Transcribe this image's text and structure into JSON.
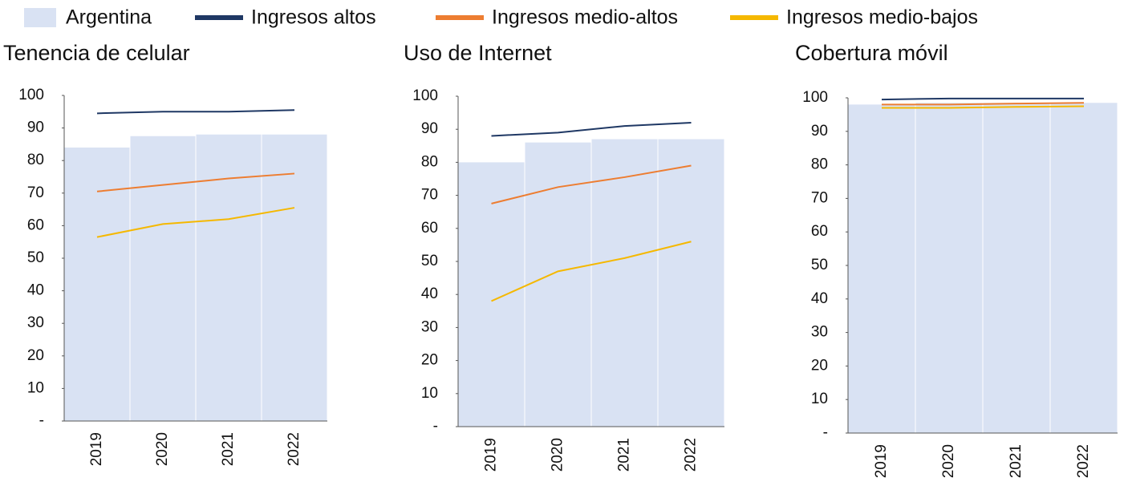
{
  "chart_data": [
    {
      "type": "bar",
      "title": "Tenencia de celular",
      "categories": [
        "2019",
        "2020",
        "2021",
        "2022"
      ],
      "ylim": [
        0,
        100
      ],
      "yticks": [
        {
          "value": 0,
          "label": "-"
        },
        10,
        20,
        30,
        40,
        50,
        60,
        70,
        80,
        90,
        100
      ],
      "legend": "top",
      "series": [
        {
          "name": "Argentina",
          "type": "bar",
          "color": "#d9e2f3",
          "values": [
            84,
            87.5,
            88,
            88
          ]
        },
        {
          "name": "Ingresos altos",
          "type": "line",
          "color": "#1f3864",
          "values": [
            94.5,
            95,
            95,
            95.5
          ]
        },
        {
          "name": "Ingresos medio-altos",
          "type": "line",
          "color": "#ed7d31",
          "values": [
            70.5,
            72.5,
            74.5,
            76
          ]
        },
        {
          "name": "Ingresos medio-bajos",
          "type": "line",
          "color": "#f5b800",
          "values": [
            56.5,
            60.5,
            62,
            65.5
          ]
        }
      ]
    },
    {
      "type": "bar",
      "title": "Uso de Internet",
      "categories": [
        "2019",
        "2020",
        "2021",
        "2022"
      ],
      "ylim": [
        0,
        100
      ],
      "yticks": [
        {
          "value": 0,
          "label": "-"
        },
        10,
        20,
        30,
        40,
        50,
        60,
        70,
        80,
        90,
        100
      ],
      "series": [
        {
          "type": "bar",
          "color": "#d9e2f3",
          "values": [
            80,
            86,
            87,
            87
          ]
        },
        {
          "type": "line",
          "color": "#1f3864",
          "values": [
            88,
            89,
            91,
            92
          ]
        },
        {
          "type": "line",
          "color": "#ed7d31",
          "values": [
            67.5,
            72.5,
            75.5,
            79
          ]
        },
        {
          "type": "line",
          "color": "#f5b800",
          "values": [
            38,
            47,
            51,
            56
          ]
        }
      ]
    },
    {
      "type": "bar",
      "title": "Cobertura móvil",
      "categories": [
        "2019",
        "2020",
        "2021",
        "2022"
      ],
      "ylim": [
        0,
        100
      ],
      "yticks": [
        {
          "value": 0,
          "label": "-"
        },
        10,
        20,
        30,
        40,
        50,
        60,
        70,
        80,
        90,
        100
      ],
      "series": [
        {
          "type": "bar",
          "color": "#d9e2f3",
          "values": [
            98,
            98.5,
            98.5,
            98.5
          ]
        },
        {
          "type": "line",
          "color": "#1f3864",
          "values": [
            99.5,
            99.8,
            99.8,
            99.8
          ]
        },
        {
          "type": "line",
          "color": "#ed7d31",
          "values": [
            98,
            98,
            98.3,
            98.5
          ]
        },
        {
          "type": "line",
          "color": "#f5b800",
          "values": [
            97,
            97,
            97.3,
            97.5
          ]
        }
      ]
    }
  ]
}
